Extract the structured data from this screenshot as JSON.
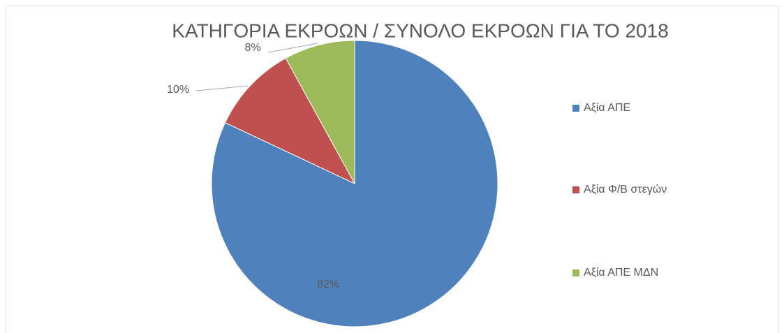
{
  "chart_data": {
    "type": "pie",
    "title": "ΚΑΤΗΓΟΡΙΑ ΕΚΡΟΩΝ / ΣΥΝΟΛΟ ΕΚΡΟΩΝ ΓΙΑ ΤΟ 2018",
    "categories": [
      "Αξία ΑΠΕ",
      "Αξία Φ/Β στεγών",
      "Αξία ΑΠΕ ΜΔΝ"
    ],
    "values": [
      82,
      10,
      8
    ],
    "value_labels": [
      "82%",
      "10%",
      "8%"
    ],
    "colors": [
      "#4f81bd",
      "#c0504d",
      "#9bbb59"
    ],
    "legend": "right"
  }
}
